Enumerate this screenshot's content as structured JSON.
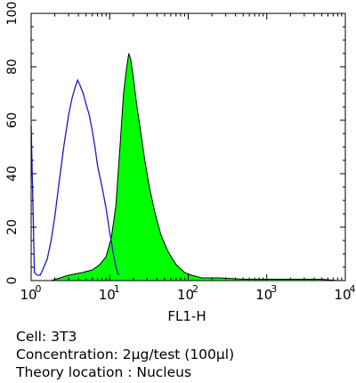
{
  "chart_data": {
    "type": "area",
    "xlabel": "FL1-H",
    "ylabel": "",
    "xscale": "log",
    "xlim": [
      1,
      10000
    ],
    "ylim": [
      0,
      100
    ],
    "x_ticks": [
      {
        "base": "10",
        "exp": "0"
      },
      {
        "base": "10",
        "exp": "1"
      },
      {
        "base": "10",
        "exp": "2"
      },
      {
        "base": "10",
        "exp": "3"
      },
      {
        "base": "10",
        "exp": "4"
      }
    ],
    "y_ticks": [
      "0",
      "20",
      "40",
      "60",
      "80",
      "100"
    ],
    "grid": false,
    "series": [
      {
        "style": "filled",
        "color": "#00ff00",
        "edge_color": "#000000",
        "x": [
          1,
          1.8,
          3,
          4.5,
          6,
          7.5,
          9,
          10.5,
          12,
          13.5,
          15,
          16.5,
          17.5,
          18.5,
          20,
          22,
          25,
          28,
          32,
          38,
          45,
          55,
          70,
          90,
          110,
          150,
          250,
          500,
          1000,
          2000,
          5000,
          8000
        ],
        "y": [
          0,
          0,
          2,
          3,
          4,
          6,
          9,
          16,
          28,
          50,
          70,
          80,
          85,
          83,
          76,
          66,
          55,
          45,
          35,
          25,
          17,
          11,
          6,
          3,
          2,
          1,
          1,
          0.5,
          0.5,
          0.5,
          0.5,
          0
        ]
      },
      {
        "style": "line",
        "color": "#1a1acc",
        "x": [
          1,
          1.05,
          1.1,
          1.2,
          1.3,
          1.4,
          1.6,
          1.8,
          2,
          2.3,
          2.6,
          3,
          3.3,
          3.6,
          3.9,
          4.2,
          4.6,
          5,
          5.5,
          6,
          6.5,
          7,
          8,
          9,
          10,
          11,
          12,
          13
        ],
        "y": [
          58,
          30,
          3,
          2,
          2,
          4,
          8,
          15,
          24,
          38,
          50,
          62,
          68,
          72,
          75,
          73,
          70,
          66,
          62,
          56,
          50,
          43,
          35,
          27,
          18,
          11,
          5,
          2
        ]
      }
    ]
  },
  "caption": {
    "cell": "Cell: 3T3",
    "concentration": "Concentration: 2μg/test (100μl)",
    "location": "Theory location : Nucleus"
  }
}
